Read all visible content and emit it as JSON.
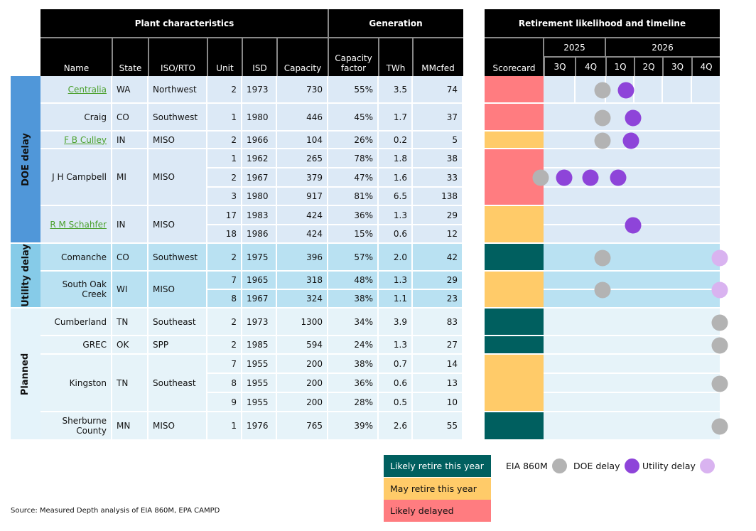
{
  "headers": {
    "plant_characteristics": "Plant characteristics",
    "generation": "Generation",
    "retirement": "Retirement likelihood and timeline",
    "columns": [
      "Name",
      "State",
      "ISO/RTO",
      "Unit",
      "ISD",
      "Capacity",
      "Capacity factor",
      "TWh",
      "MMcfed"
    ],
    "scorecard": "Scorecard",
    "years": [
      "2025",
      "2026"
    ],
    "quarters": [
      "3Q",
      "4Q",
      "1Q",
      "2Q",
      "3Q",
      "4Q"
    ]
  },
  "colors": {
    "likely_retire": "#005f5f",
    "may_retire": "#ffcb69",
    "likely_delayed": "#ff7c80",
    "eia": "#b3b3b3",
    "doe": "#8e44d9",
    "utility": "#d9b3f0",
    "link": "#4aa02c"
  },
  "chart_data": {
    "type": "table",
    "title": "Retirement likelihood and timeline",
    "timeline_unit": "quarters after start of 3Q 2025",
    "groups": [
      {
        "label": "DOE delay",
        "side_color": "#5097d9",
        "row_color": "#dce9f6",
        "plants": [
          {
            "name": "Centralia",
            "link": true,
            "state": "WA",
            "iso": "Northwest",
            "scorecard": "likely_delayed",
            "units": [
              {
                "unit": "2",
                "isd": "1973",
                "capacity": "730",
                "cf": "55%",
                "twh": "3.5",
                "mmcfed": "74"
              }
            ],
            "dots": [
              {
                "type": "eia",
                "q": 2.0
              },
              {
                "type": "doe",
                "q": 2.8
              }
            ]
          },
          {
            "name": "Craig",
            "link": false,
            "state": "CO",
            "iso": "Southwest",
            "scorecard": "likely_delayed",
            "units": [
              {
                "unit": "1",
                "isd": "1980",
                "capacity": "446",
                "cf": "45%",
                "twh": "1.7",
                "mmcfed": "37"
              }
            ],
            "dots": [
              {
                "type": "eia",
                "q": 2.0
              },
              {
                "type": "doe",
                "q": 3.05
              }
            ]
          },
          {
            "name": "F B Culley",
            "link": true,
            "state": "IN",
            "iso": "MISO",
            "scorecard": "may_retire",
            "units": [
              {
                "unit": "2",
                "isd": "1966",
                "capacity": "104",
                "cf": "26%",
                "twh": "0.2",
                "mmcfed": "5"
              }
            ],
            "dots": [
              {
                "type": "eia",
                "q": 2.0
              },
              {
                "type": "doe",
                "q": 2.97
              }
            ]
          },
          {
            "name": "J H Campbell",
            "link": false,
            "state": "MI",
            "iso": "MISO",
            "scorecard": "likely_delayed",
            "units": [
              {
                "unit": "1",
                "isd": "1962",
                "capacity": "265",
                "cf": "78%",
                "twh": "1.8",
                "mmcfed": "38"
              },
              {
                "unit": "2",
                "isd": "1967",
                "capacity": "379",
                "cf": "47%",
                "twh": "1.6",
                "mmcfed": "33"
              },
              {
                "unit": "3",
                "isd": "1980",
                "capacity": "917",
                "cf": "81%",
                "twh": "6.5",
                "mmcfed": "138"
              }
            ],
            "dots": [
              {
                "type": "eia",
                "q": -0.1
              },
              {
                "type": "doe",
                "q": 0.7
              },
              {
                "type": "doe",
                "q": 1.6
              },
              {
                "type": "doe",
                "q": 2.55
              }
            ]
          },
          {
            "name": "R M Schahfer",
            "link": true,
            "state": "IN",
            "iso": "MISO",
            "scorecard": "may_retire",
            "units": [
              {
                "unit": "17",
                "isd": "1983",
                "capacity": "424",
                "cf": "36%",
                "twh": "1.3",
                "mmcfed": "29"
              },
              {
                "unit": "18",
                "isd": "1986",
                "capacity": "424",
                "cf": "15%",
                "twh": "0.6",
                "mmcfed": "12"
              }
            ],
            "dots": [
              {
                "type": "doe",
                "q": 3.05
              }
            ]
          }
        ]
      },
      {
        "label": "Utility delay",
        "side_color": "#86cbe8",
        "row_color": "#b9e1f2",
        "plants": [
          {
            "name": "Comanche",
            "link": false,
            "state": "CO",
            "iso": "Southwest",
            "scorecard": "likely_retire",
            "units": [
              {
                "unit": "2",
                "isd": "1975",
                "capacity": "396",
                "cf": "57%",
                "twh": "2.0",
                "mmcfed": "42"
              }
            ],
            "dots": [
              {
                "type": "eia",
                "q": 2.0
              },
              {
                "type": "utility",
                "q": 6.0
              }
            ]
          },
          {
            "name": "South Oak Creek",
            "link": false,
            "state": "WI",
            "iso": "MISO",
            "scorecard": "may_retire",
            "units": [
              {
                "unit": "7",
                "isd": "1965",
                "capacity": "318",
                "cf": "48%",
                "twh": "1.3",
                "mmcfed": "29"
              },
              {
                "unit": "8",
                "isd": "1967",
                "capacity": "324",
                "cf": "38%",
                "twh": "1.1",
                "mmcfed": "23"
              }
            ],
            "dots": [
              {
                "type": "eia",
                "q": 2.0
              },
              {
                "type": "utility",
                "q": 6.0
              }
            ]
          }
        ]
      },
      {
        "label": "Planned",
        "side_color": "#e4f3fa",
        "row_color": "#e6f3f9",
        "plants": [
          {
            "name": "Cumberland",
            "link": false,
            "state": "TN",
            "iso": "Southeast",
            "scorecard": "likely_retire",
            "units": [
              {
                "unit": "2",
                "isd": "1973",
                "capacity": "1300",
                "cf": "34%",
                "twh": "3.9",
                "mmcfed": "83"
              }
            ],
            "dots": [
              {
                "type": "eia",
                "q": 6.0
              }
            ]
          },
          {
            "name": "GREC",
            "link": false,
            "state": "OK",
            "iso": "SPP",
            "scorecard": "likely_retire",
            "units": [
              {
                "unit": "2",
                "isd": "1985",
                "capacity": "594",
                "cf": "24%",
                "twh": "1.3",
                "mmcfed": "27"
              }
            ],
            "dots": [
              {
                "type": "eia",
                "q": 6.0
              }
            ]
          },
          {
            "name": "Kingston",
            "link": false,
            "state": "TN",
            "iso": "Southeast",
            "scorecard": "may_retire",
            "units": [
              {
                "unit": "7",
                "isd": "1955",
                "capacity": "200",
                "cf": "38%",
                "twh": "0.7",
                "mmcfed": "14"
              },
              {
                "unit": "8",
                "isd": "1955",
                "capacity": "200",
                "cf": "36%",
                "twh": "0.6",
                "mmcfed": "13"
              },
              {
                "unit": "9",
                "isd": "1955",
                "capacity": "200",
                "cf": "28%",
                "twh": "0.5",
                "mmcfed": "10"
              }
            ],
            "dots": [
              {
                "type": "eia",
                "q": 6.0
              }
            ]
          },
          {
            "name": "Sherburne County",
            "link": false,
            "state": "MN",
            "iso": "MISO",
            "scorecard": "likely_retire",
            "units": [
              {
                "unit": "1",
                "isd": "1976",
                "capacity": "765",
                "cf": "39%",
                "twh": "2.6",
                "mmcfed": "55"
              }
            ],
            "dots": [
              {
                "type": "eia",
                "q": 6.0
              }
            ]
          }
        ]
      }
    ]
  },
  "legend": {
    "likely_retire": "Likely retire this year",
    "may_retire": "May retire this year",
    "likely_delayed": "Likely delayed",
    "eia": "EIA 860M",
    "doe": "DOE delay",
    "utility": "Utility delay"
  },
  "source": "Source: Measured Depth analysis of EIA 860M, EPA CAMPD"
}
